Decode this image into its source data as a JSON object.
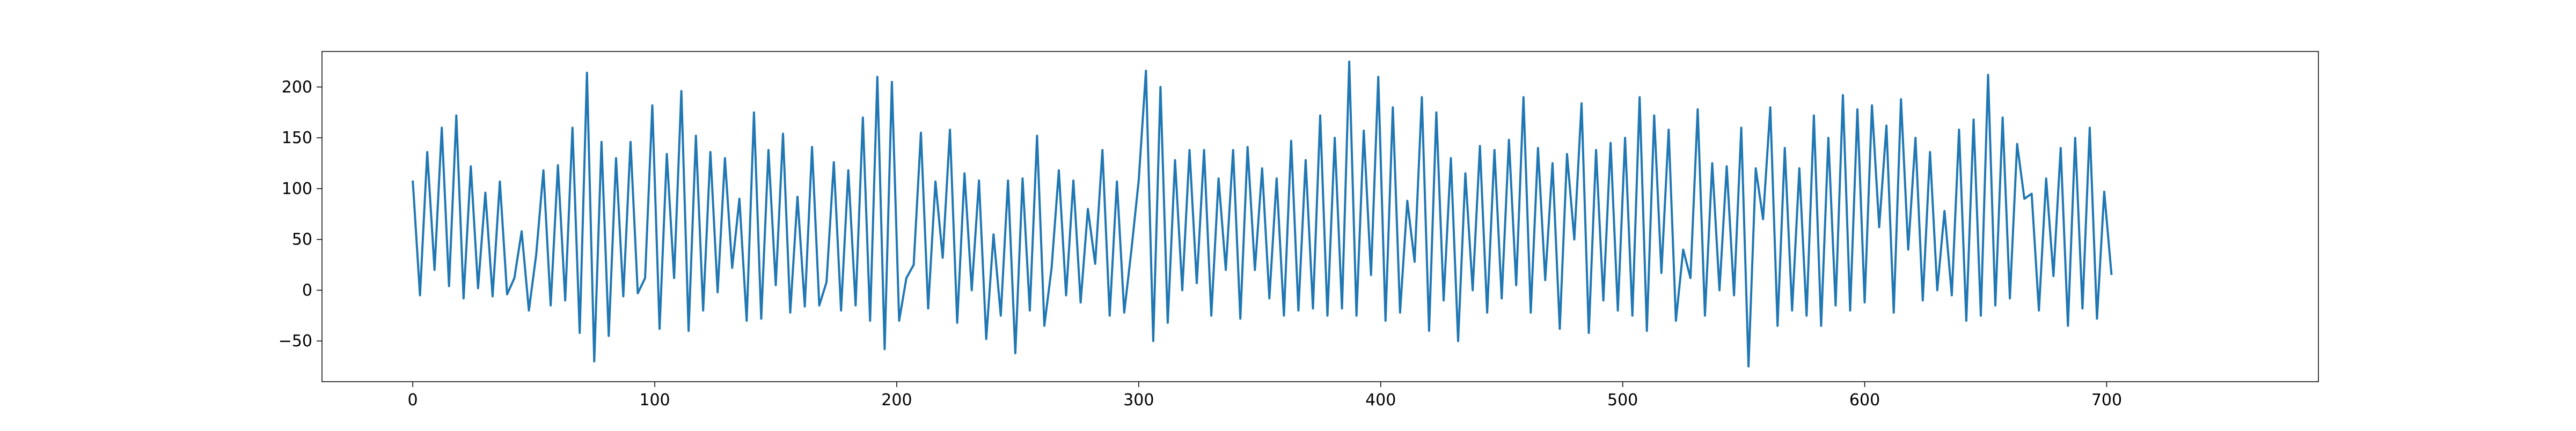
{
  "chart_data": {
    "type": "line",
    "title": "",
    "xlabel": "",
    "ylabel": "",
    "xlim": [
      -37.5,
      787.5
    ],
    "ylim": [
      -90,
      235
    ],
    "x_ticks": [
      0,
      100,
      200,
      300,
      400,
      500,
      600,
      700
    ],
    "y_ticks": [
      -50,
      0,
      50,
      100,
      150,
      200
    ],
    "grid": false,
    "legend": "none",
    "line_color": "#1f77b4",
    "x_start": 0,
    "x_step": 3,
    "series": [
      {
        "values": [
          108,
          -5,
          136,
          20,
          160,
          4,
          172,
          -8,
          122,
          2,
          96,
          -6,
          107,
          -4,
          12,
          58,
          -20,
          35,
          118,
          -15,
          123,
          -10,
          160,
          -42,
          214,
          -70,
          146,
          -45,
          130,
          -6,
          146,
          -3,
          12,
          182,
          -38,
          134,
          12,
          196,
          -40,
          152,
          -20,
          136,
          -2,
          130,
          22,
          90,
          -30,
          175,
          -28,
          138,
          5,
          154,
          -22,
          92,
          -16,
          141,
          -15,
          8,
          126,
          -20,
          118,
          -15,
          170,
          -30,
          210,
          -58,
          205,
          -30,
          12,
          25,
          155,
          -18,
          107,
          32,
          158,
          -32,
          115,
          0,
          108,
          -48,
          55,
          -25,
          108,
          -62,
          110,
          -20,
          152,
          -35,
          22,
          118,
          -5,
          108,
          -12,
          80,
          26,
          138,
          -25,
          107,
          -22,
          40,
          108,
          216,
          -50,
          200,
          -32,
          128,
          0,
          138,
          7,
          138,
          -25,
          110,
          20,
          138,
          -28,
          141,
          20,
          120,
          -8,
          110,
          -25,
          147,
          -20,
          128,
          -18,
          172,
          -25,
          150,
          -18,
          225,
          -25,
          157,
          15,
          210,
          -30,
          180,
          -22,
          88,
          28,
          190,
          -40,
          175,
          -10,
          130,
          -50,
          115,
          0,
          142,
          -22,
          138,
          -8,
          148,
          5,
          190,
          -22,
          140,
          10,
          125,
          -38,
          134,
          50,
          184,
          -42,
          138,
          -10,
          145,
          -20,
          150,
          -25,
          190,
          -40,
          172,
          17,
          158,
          -30,
          40,
          12,
          178,
          -25,
          125,
          0,
          122,
          -5,
          160,
          -75,
          120,
          70,
          180,
          -35,
          140,
          -20,
          120,
          -25,
          172,
          -35,
          150,
          -15,
          192,
          -20,
          178,
          -12,
          182,
          62,
          162,
          -22,
          188,
          40,
          150,
          -10,
          136,
          0,
          78,
          -5,
          158,
          -30,
          168,
          -25,
          212,
          -15,
          170,
          -8,
          144,
          90,
          95,
          -20,
          110,
          14,
          140,
          -35,
          150,
          -18,
          160,
          -28,
          97,
          15
        ]
      }
    ]
  }
}
